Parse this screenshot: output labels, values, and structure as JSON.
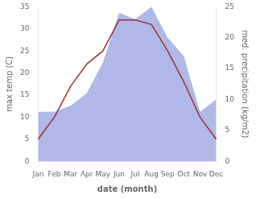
{
  "chart_data": {
    "type": "line",
    "xlabel": "date (month)",
    "ylabel": "max temp (C)",
    "y2label": "med. precipitation (kg/m2)",
    "categories": [
      "Jan",
      "Feb",
      "Mar",
      "Apr",
      "May",
      "Jun",
      "Jul",
      "Aug",
      "Sep",
      "Oct",
      "Nov",
      "Dec"
    ],
    "series": [
      {
        "type": "area",
        "color": "#b0b8e8",
        "axis": "y2",
        "values": [
          8,
          8,
          9,
          11,
          16,
          24,
          23,
          25,
          20,
          17,
          8,
          10
        ]
      },
      {
        "type": "line",
        "color": "#993333",
        "values": [
          5,
          10,
          17,
          22,
          25,
          32,
          32,
          31,
          25,
          18,
          10,
          5
        ]
      }
    ],
    "ylim": [
      0,
      35
    ],
    "yticks": [
      0,
      5,
      10,
      15,
      20,
      25,
      30,
      35
    ],
    "y2lim": [
      0,
      25
    ],
    "y2ticks": [
      0,
      5,
      10,
      15,
      20,
      25
    ],
    "grid": false
  }
}
